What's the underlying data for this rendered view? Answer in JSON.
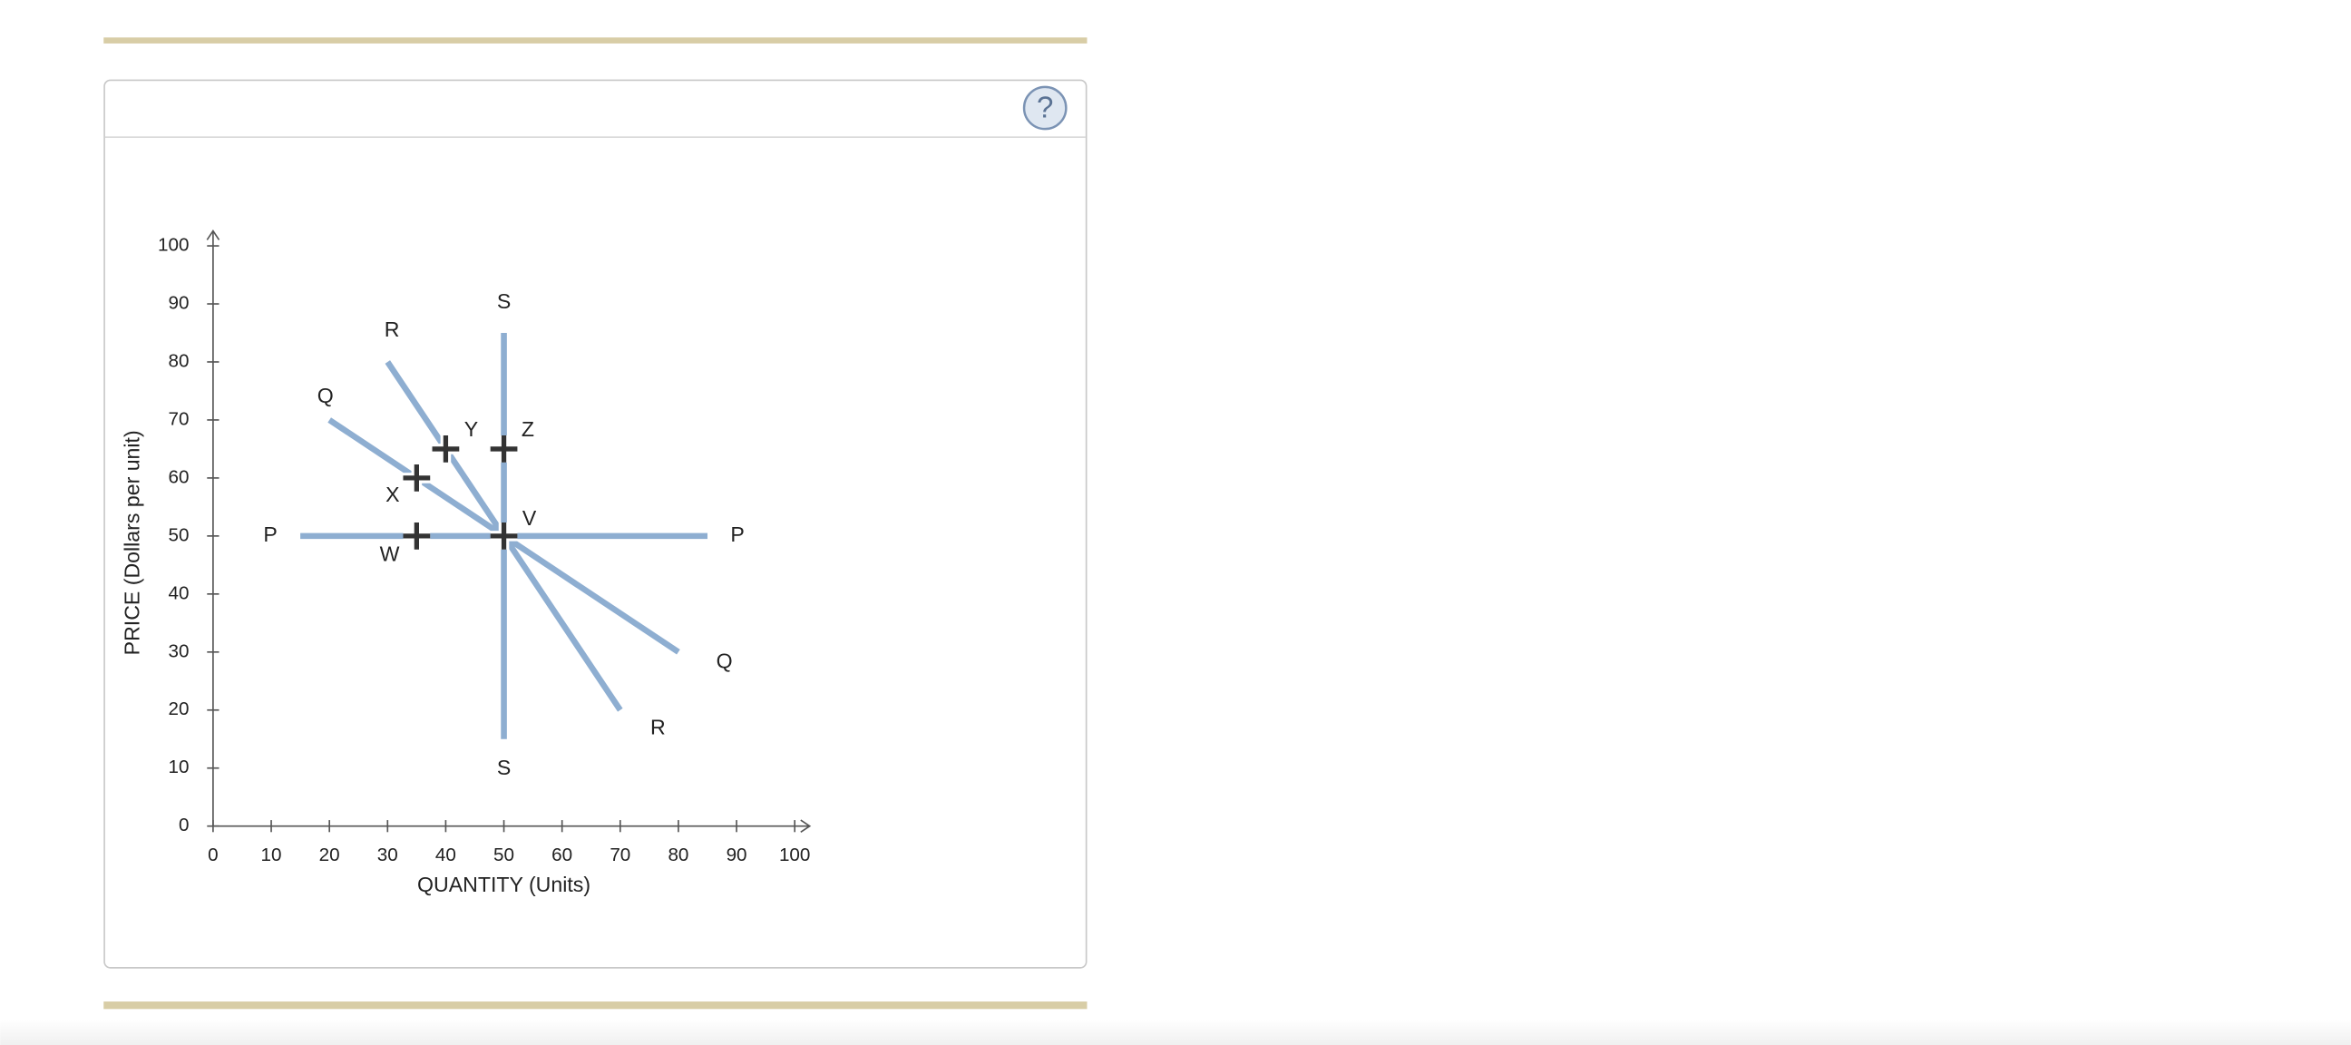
{
  "help": "?",
  "chart_data": {
    "type": "line",
    "xlabel": "QUANTITY (Units)",
    "ylabel": "PRICE (Dollars per unit)",
    "xlim": [
      0,
      100
    ],
    "ylim": [
      0,
      100
    ],
    "xticks": [
      0,
      10,
      20,
      30,
      40,
      50,
      60,
      70,
      80,
      90,
      100
    ],
    "yticks": [
      0,
      10,
      20,
      30,
      40,
      50,
      60,
      70,
      80,
      90,
      100
    ],
    "series": [
      {
        "name": "P",
        "color": "#8eaed1",
        "x": [
          15,
          85
        ],
        "values": [
          50,
          50
        ]
      },
      {
        "name": "S",
        "color": "#8eaed1",
        "x": [
          50,
          50
        ],
        "values": [
          85,
          15
        ]
      },
      {
        "name": "Q",
        "color": "#8eaed1",
        "x": [
          20,
          80
        ],
        "values": [
          70,
          30
        ]
      },
      {
        "name": "R",
        "color": "#8eaed1",
        "x": [
          30,
          70
        ],
        "values": [
          80,
          20
        ]
      }
    ],
    "points": {
      "color": "#333333",
      "labels": [
        "W",
        "X",
        "Y",
        "Z",
        "V"
      ],
      "x": [
        35,
        35,
        40,
        50,
        50
      ],
      "values": [
        50,
        60,
        65,
        65,
        50
      ]
    }
  }
}
